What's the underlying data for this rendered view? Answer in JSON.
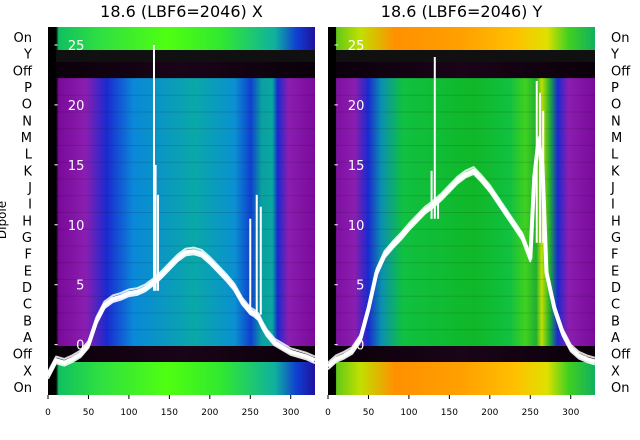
{
  "chart_data": [
    {
      "type": "heatmap",
      "title": "18.6 (LBF6=2046) X",
      "ylabel": "Dipole",
      "xlim": [
        0,
        330
      ],
      "ylim": [
        -4.2,
        26.5
      ],
      "x_ticks": [
        "0",
        "50",
        "100",
        "150",
        "200",
        "250",
        "300"
      ],
      "x_tick_values": [
        0,
        50,
        100,
        150,
        200,
        250,
        300
      ],
      "y_ticks": [
        "0",
        "5",
        "10",
        "15",
        "20",
        "25"
      ],
      "y_tick_values": [
        0,
        5,
        10,
        15,
        20,
        25
      ],
      "dipole_labels": [
        "On",
        "Y",
        "Off",
        "P",
        "O",
        "N",
        "M",
        "L",
        "K",
        "J",
        "I",
        "H",
        "G",
        "F",
        "E",
        "D",
        "C",
        "B",
        "A",
        "Off",
        "X",
        "On"
      ],
      "series": [
        {
          "x": [
            0,
            10,
            20,
            30,
            40,
            50,
            60,
            70,
            80,
            90,
            100,
            110,
            120,
            130,
            140,
            150,
            160,
            170,
            180,
            190,
            200,
            210,
            220,
            230,
            240,
            250,
            255,
            260,
            265,
            270,
            280,
            290,
            300,
            310,
            320,
            330
          ],
          "y": [
            -2.6,
            -1.3,
            -1.5,
            -1.2,
            -0.8,
            0.0,
            2.0,
            3.3,
            3.8,
            4.0,
            4.3,
            4.4,
            4.7,
            5.2,
            5.8,
            6.5,
            7.2,
            7.7,
            7.8,
            7.6,
            7.0,
            6.3,
            5.6,
            4.8,
            3.6,
            2.8,
            2.6,
            2.3,
            1.6,
            1.0,
            0.2,
            -0.2,
            -0.6,
            -0.8,
            -1.0,
            -1.3
          ]
        }
      ],
      "spikes": [
        {
          "x": 131,
          "y": 25.0
        },
        {
          "x": 133,
          "y": 15.0
        },
        {
          "x": 136,
          "y": 12.5
        },
        {
          "x": 250,
          "y": 10.5
        },
        {
          "x": 258,
          "y": 12.5
        },
        {
          "x": 263,
          "y": 11.5
        }
      ]
    },
    {
      "type": "heatmap",
      "title": "18.6 (LBF6=2046) Y",
      "ylabel": "",
      "xlim": [
        0,
        330
      ],
      "ylim": [
        -4.2,
        26.5
      ],
      "x_ticks": [
        "0",
        "50",
        "100",
        "150",
        "200",
        "250",
        "300"
      ],
      "x_tick_values": [
        0,
        50,
        100,
        150,
        200,
        250,
        300
      ],
      "y_ticks": [
        "0",
        "5",
        "10",
        "15",
        "20",
        "25"
      ],
      "y_tick_values": [
        0,
        5,
        10,
        15,
        20,
        25
      ],
      "dipole_labels": [
        "On",
        "Y",
        "Off",
        "P",
        "O",
        "N",
        "M",
        "L",
        "K",
        "J",
        "I",
        "H",
        "G",
        "F",
        "E",
        "D",
        "C",
        "B",
        "A",
        "Off",
        "X",
        "On"
      ],
      "series": [
        {
          "x": [
            0,
            10,
            20,
            30,
            40,
            50,
            60,
            70,
            80,
            90,
            100,
            110,
            120,
            130,
            140,
            150,
            160,
            170,
            180,
            190,
            200,
            210,
            220,
            230,
            240,
            250,
            255,
            260,
            265,
            270,
            280,
            290,
            300,
            310,
            320,
            330
          ],
          "y": [
            -1.8,
            -1.2,
            -0.9,
            -0.5,
            0.5,
            3.0,
            6.0,
            7.5,
            8.3,
            9.0,
            9.8,
            10.5,
            11.2,
            11.7,
            12.3,
            13.0,
            13.7,
            14.2,
            14.5,
            13.8,
            13.0,
            12.0,
            11.0,
            10.0,
            9.0,
            7.2,
            14.0,
            17.0,
            15.0,
            6.0,
            3.0,
            1.0,
            -0.3,
            -0.9,
            -1.2,
            -1.4
          ]
        }
      ],
      "spikes": [
        {
          "x": 132,
          "y": 24.0
        },
        {
          "x": 128,
          "y": 14.5
        },
        {
          "x": 136,
          "y": 12.0
        },
        {
          "x": 258,
          "y": 22.0
        },
        {
          "x": 262,
          "y": 21.0
        },
        {
          "x": 266,
          "y": 19.5
        }
      ]
    }
  ]
}
